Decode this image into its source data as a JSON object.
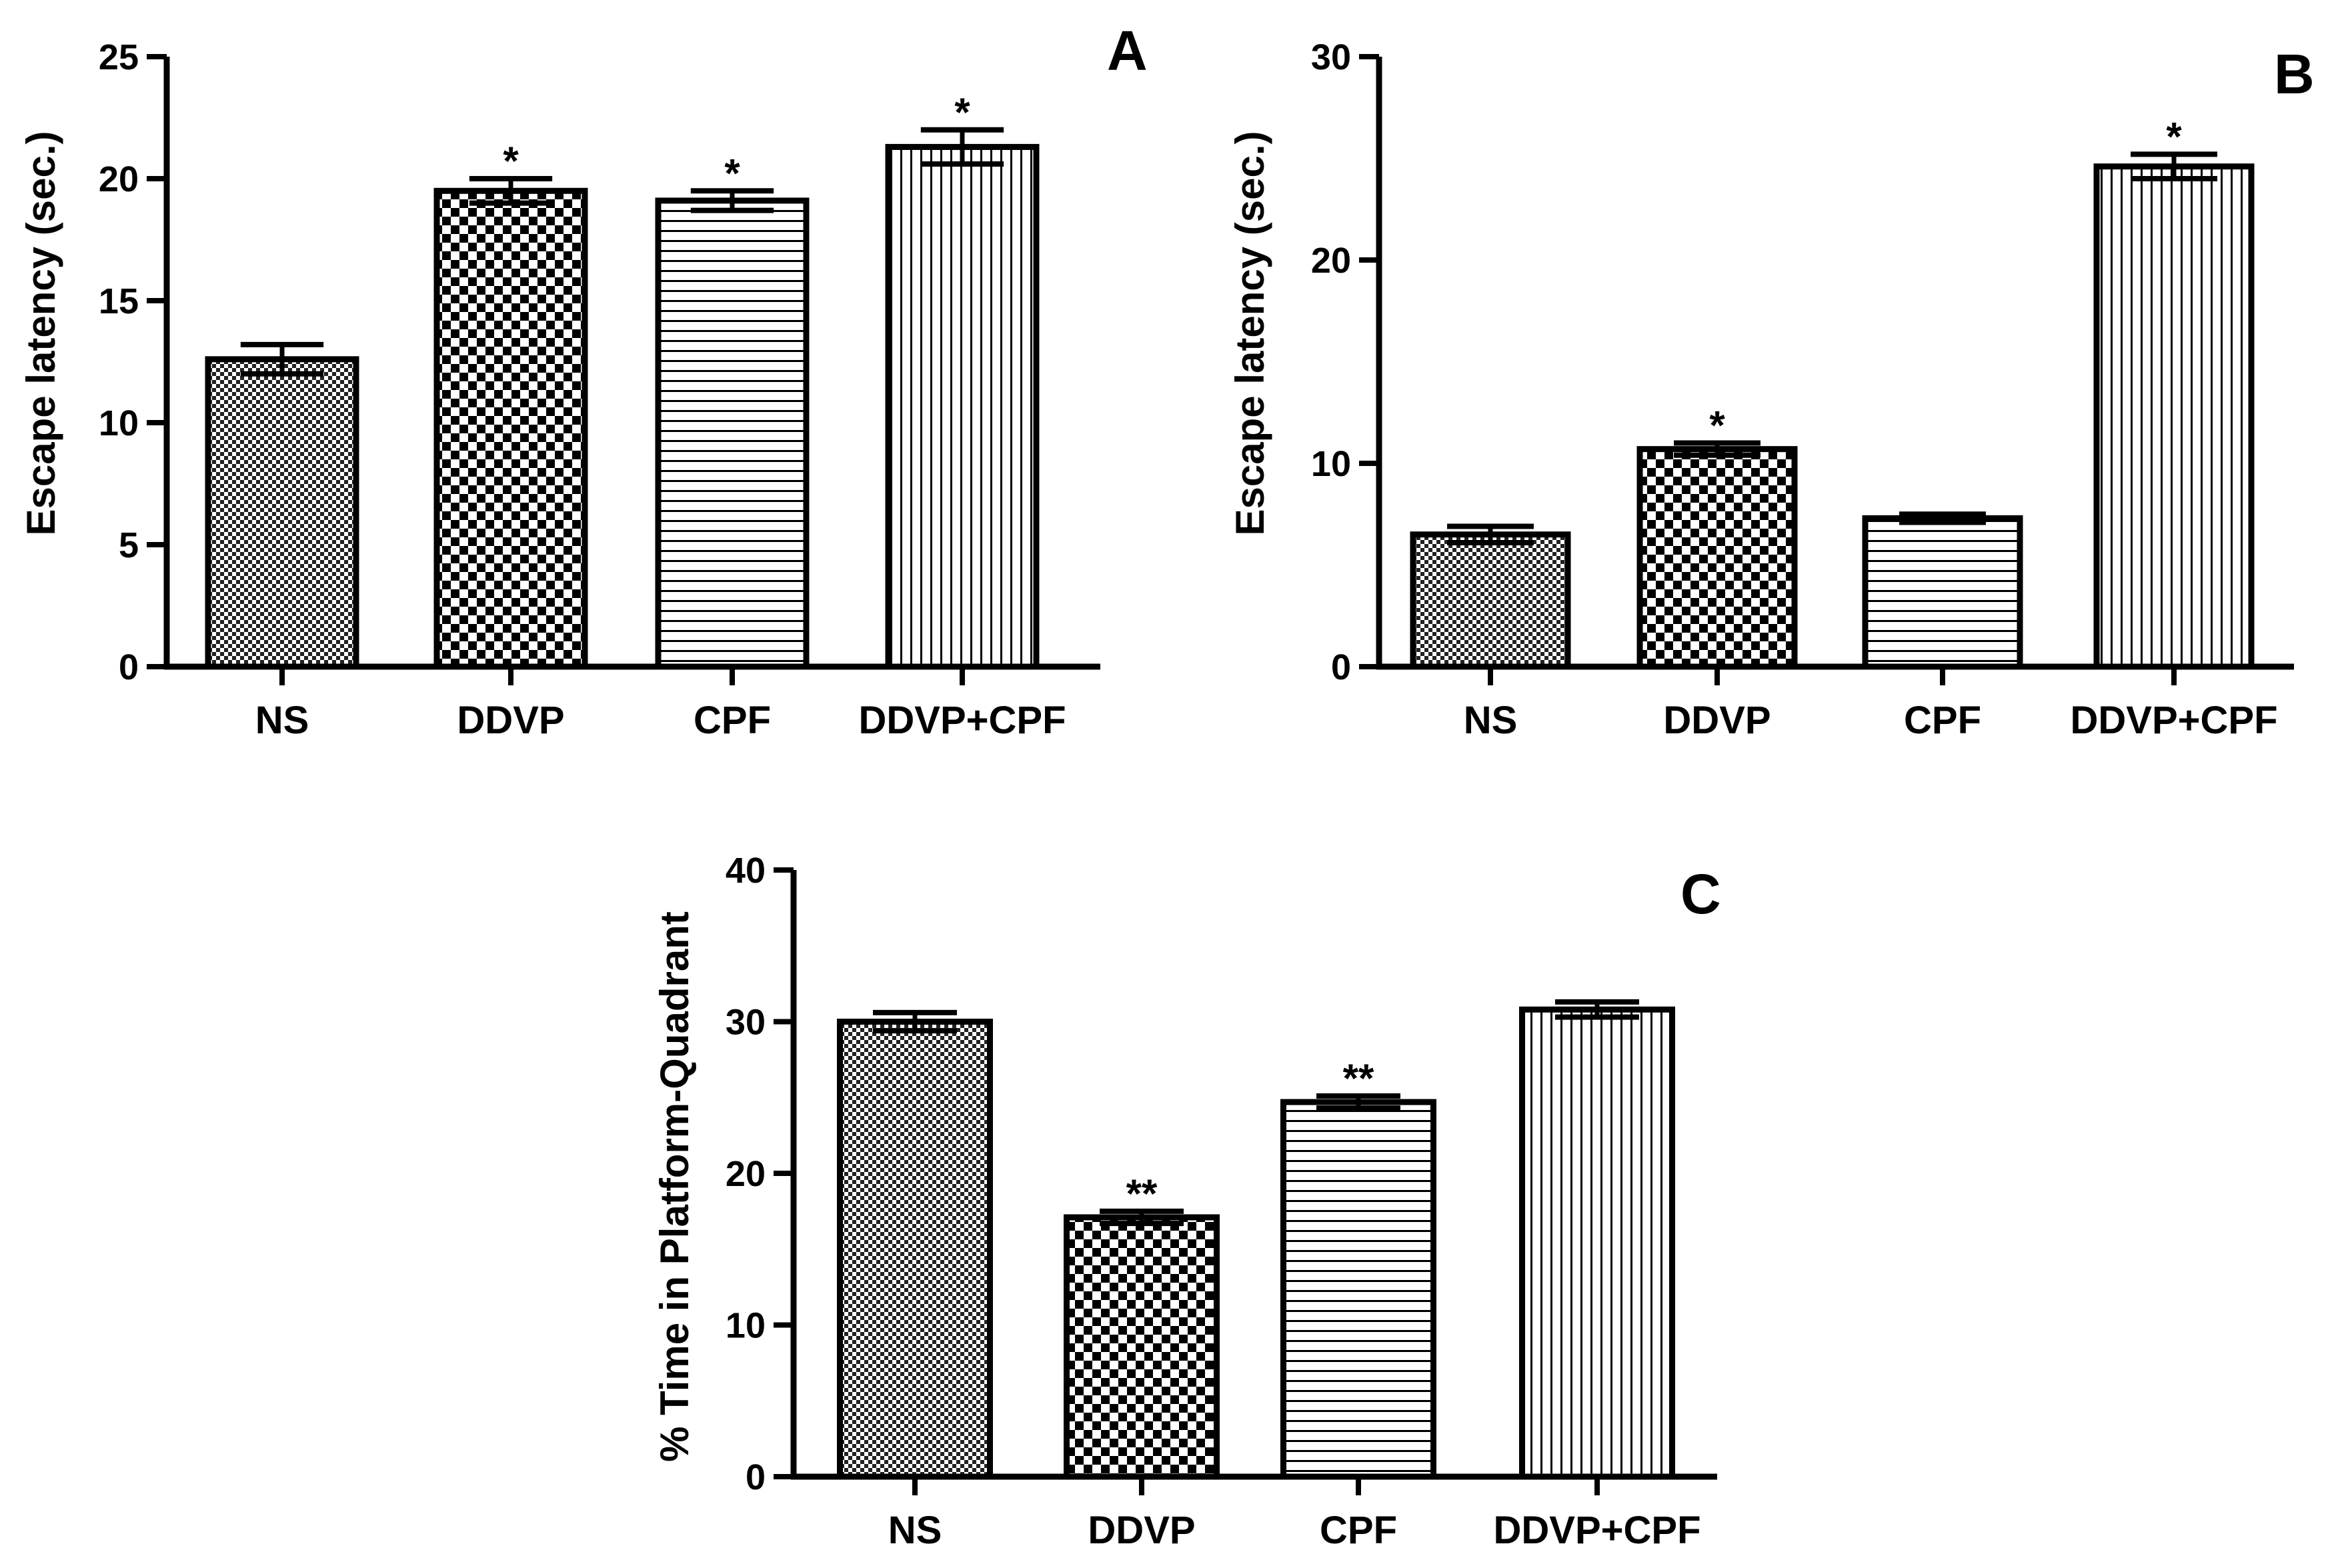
{
  "chart_data": [
    {
      "panel": "A",
      "type": "bar",
      "categories": [
        "NS",
        "DDVP",
        "CPF",
        "DDVP+CPF"
      ],
      "values": [
        12.6,
        19.5,
        19.1,
        21.3
      ],
      "errors": [
        0.6,
        0.5,
        0.4,
        0.7
      ],
      "significance": [
        "",
        "*",
        "*",
        "*"
      ],
      "patterns": [
        "fine-check",
        "coarse-check",
        "horizontal",
        "vertical"
      ],
      "title": "",
      "xlabel": "",
      "ylabel": "Escape latency (sec.)",
      "ylim": [
        0,
        25
      ],
      "yticks": [
        0,
        5,
        10,
        15,
        20,
        25
      ]
    },
    {
      "panel": "B",
      "type": "bar",
      "categories": [
        "NS",
        "DDVP",
        "CPF",
        "DDVP+CPF"
      ],
      "values": [
        6.5,
        10.7,
        7.3,
        24.6
      ],
      "errors": [
        0.4,
        0.3,
        0.2,
        0.6
      ],
      "significance": [
        "",
        "*",
        "",
        "*"
      ],
      "patterns": [
        "fine-check",
        "coarse-check",
        "horizontal",
        "vertical"
      ],
      "title": "",
      "xlabel": "",
      "ylabel": "Escape latency (sec.)",
      "ylim": [
        0,
        30
      ],
      "yticks": [
        0,
        10,
        20,
        30
      ]
    },
    {
      "panel": "C",
      "type": "bar",
      "categories": [
        "NS",
        "DDVP",
        "CPF",
        "DDVP+CPF"
      ],
      "values": [
        30.0,
        17.1,
        24.7,
        30.8
      ],
      "errors": [
        0.6,
        0.4,
        0.4,
        0.5
      ],
      "significance": [
        "",
        "**",
        "**",
        ""
      ],
      "patterns": [
        "fine-check",
        "coarse-check",
        "horizontal",
        "vertical"
      ],
      "title": "",
      "xlabel": "",
      "ylabel": "% Time in Platform-Quadrant",
      "ylim": [
        0,
        40
      ],
      "yticks": [
        0,
        10,
        20,
        30,
        40
      ]
    }
  ]
}
